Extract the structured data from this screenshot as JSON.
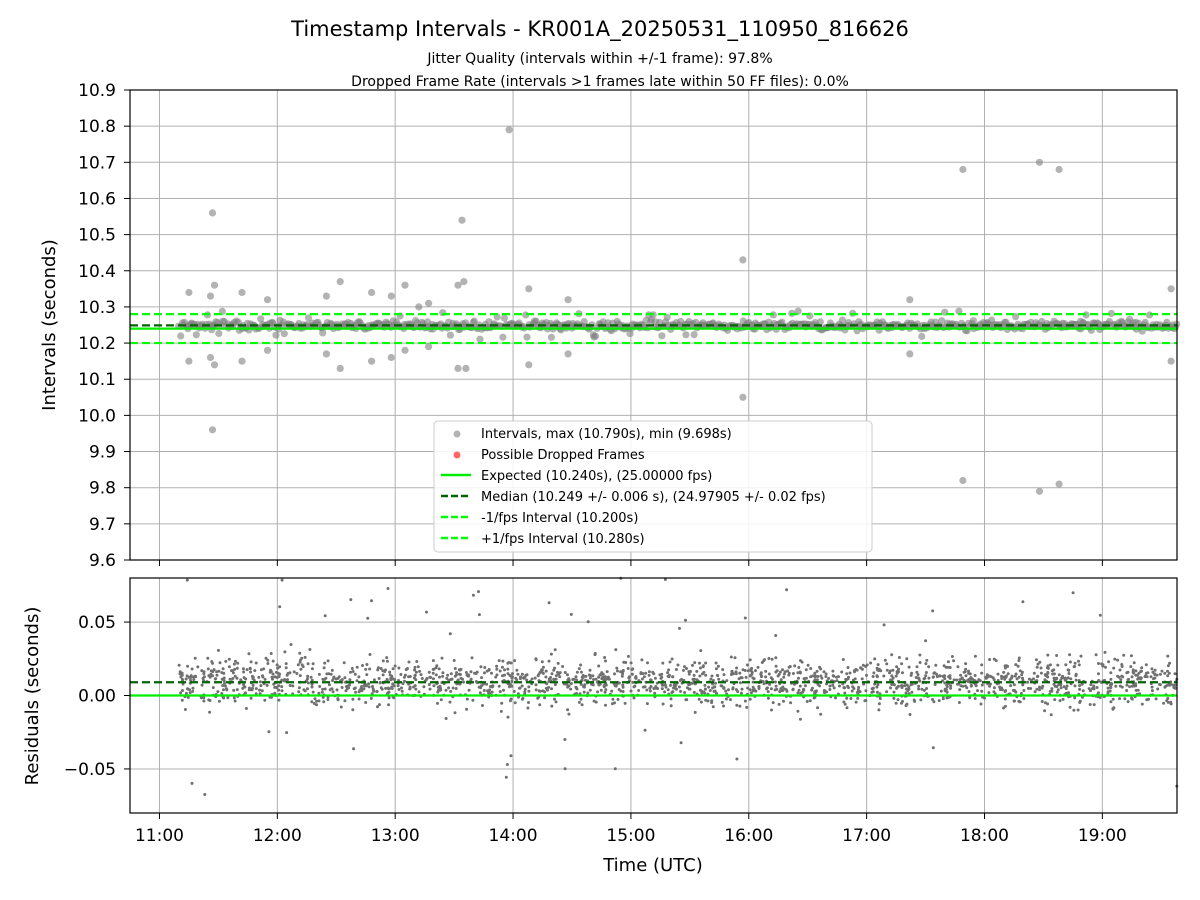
{
  "figure": {
    "title": "Timestamp Intervals - KR001A_20250531_110950_816626",
    "subtitle_1": "Jitter Quality (intervals within +/-1 frame): 97.8%",
    "subtitle_2": "Dropped Frame Rate (intervals >1 frames late within 50 FF files): 0.0%"
  },
  "colors": {
    "points": "#808080",
    "dropped": "#ff0000",
    "expected": "#00ee00",
    "median": "#006400",
    "bounds": "#00ff00",
    "grid": "#b0b0b0"
  },
  "chart_data": [
    {
      "type": "scatter",
      "ylabel": "Intervals (seconds)",
      "xlim": [
        "10:45",
        "19:38"
      ],
      "ylim": [
        9.6,
        10.9
      ],
      "yticks": [
        "9.6",
        "9.7",
        "9.8",
        "9.9",
        "10.0",
        "10.1",
        "10.2",
        "10.3",
        "10.4",
        "10.5",
        "10.6",
        "10.7",
        "10.8",
        "10.9"
      ],
      "grid": true,
      "legend_position": "lower-center",
      "legend": [
        "Intervals, max (10.790s), min (9.698s)",
        "Possible Dropped Frames",
        "Expected (10.240s), (25.00000 fps)",
        "Median (10.249 +/- 0.006 s), (24.97905 +/- 0.02 fps)",
        "-1/fps Interval (10.200s)",
        "+1/fps Interval (10.280s)"
      ],
      "series": [
        {
          "name": "Intervals, max (10.790s), min (9.698s)",
          "time_range": [
            "11:10",
            "19:38"
          ],
          "center": 10.249,
          "spread": 0.006,
          "outliers": [
            [
              "11:27",
              10.56
            ],
            [
              "11:27",
              9.96
            ],
            [
              "11:15",
              10.34
            ],
            [
              "11:26",
              10.33
            ],
            [
              "11:28",
              10.36
            ],
            [
              "11:15",
              10.15
            ],
            [
              "11:26",
              10.16
            ],
            [
              "11:28",
              10.14
            ],
            [
              "11:42",
              10.34
            ],
            [
              "11:42",
              10.15
            ],
            [
              "11:55",
              10.32
            ],
            [
              "11:55",
              10.18
            ],
            [
              "12:25",
              10.33
            ],
            [
              "12:25",
              10.17
            ],
            [
              "12:32",
              10.37
            ],
            [
              "12:32",
              10.13
            ],
            [
              "12:48",
              10.34
            ],
            [
              "12:48",
              10.15
            ],
            [
              "12:58",
              10.33
            ],
            [
              "12:58",
              10.16
            ],
            [
              "13:05",
              10.36
            ],
            [
              "13:05",
              10.18
            ],
            [
              "13:12",
              10.3
            ],
            [
              "13:17",
              10.31
            ],
            [
              "13:17",
              10.19
            ],
            [
              "13:32",
              10.36
            ],
            [
              "13:32",
              10.13
            ],
            [
              "13:34",
              10.54
            ],
            [
              "13:35",
              10.37
            ],
            [
              "13:36",
              10.13
            ],
            [
              "13:58",
              10.79
            ],
            [
              "14:08",
              10.35
            ],
            [
              "14:08",
              10.14
            ],
            [
              "14:28",
              10.32
            ],
            [
              "14:28",
              10.17
            ],
            [
              "15:57",
              10.43
            ],
            [
              "15:57",
              10.05
            ],
            [
              "17:22",
              10.32
            ],
            [
              "17:22",
              10.17
            ],
            [
              "17:49",
              10.68
            ],
            [
              "17:49",
              9.82
            ],
            [
              "18:28",
              10.7
            ],
            [
              "18:28",
              9.79
            ],
            [
              "18:38",
              10.68
            ],
            [
              "18:38",
              9.81
            ],
            [
              "19:35",
              10.35
            ],
            [
              "19:35",
              10.15
            ]
          ]
        },
        {
          "name": "Possible Dropped Frames",
          "points": []
        },
        {
          "name": "Expected (10.240s), (25.00000 fps)",
          "y": 10.24,
          "style": "solid"
        },
        {
          "name": "Median (10.249 +/- 0.006 s), (24.97905 +/- 0.02 fps)",
          "y": 10.249,
          "style": "dashed"
        },
        {
          "name": "-1/fps Interval (10.200s)",
          "y": 10.2,
          "style": "dashed"
        },
        {
          "name": "+1/fps Interval (10.280s)",
          "y": 10.28,
          "style": "dashed"
        }
      ]
    },
    {
      "type": "scatter",
      "xlabel": "Time (UTC)",
      "ylabel": "Residuals (seconds)",
      "xlim": [
        "10:45",
        "19:38"
      ],
      "ylim": [
        -0.08,
        0.08
      ],
      "xticks": [
        "11:00",
        "12:00",
        "13:00",
        "14:00",
        "15:00",
        "16:00",
        "17:00",
        "18:00",
        "19:00"
      ],
      "yticks": [
        "0.05",
        "0.00",
        "−0.05"
      ],
      "grid": true,
      "series": [
        {
          "name": "residuals",
          "time_range": [
            "11:10",
            "19:38"
          ],
          "center": 0.009,
          "spread": 0.008
        },
        {
          "name": "expected",
          "y": 0.0,
          "style": "solid"
        },
        {
          "name": "median",
          "y": 0.009,
          "style": "dashed"
        }
      ]
    }
  ]
}
